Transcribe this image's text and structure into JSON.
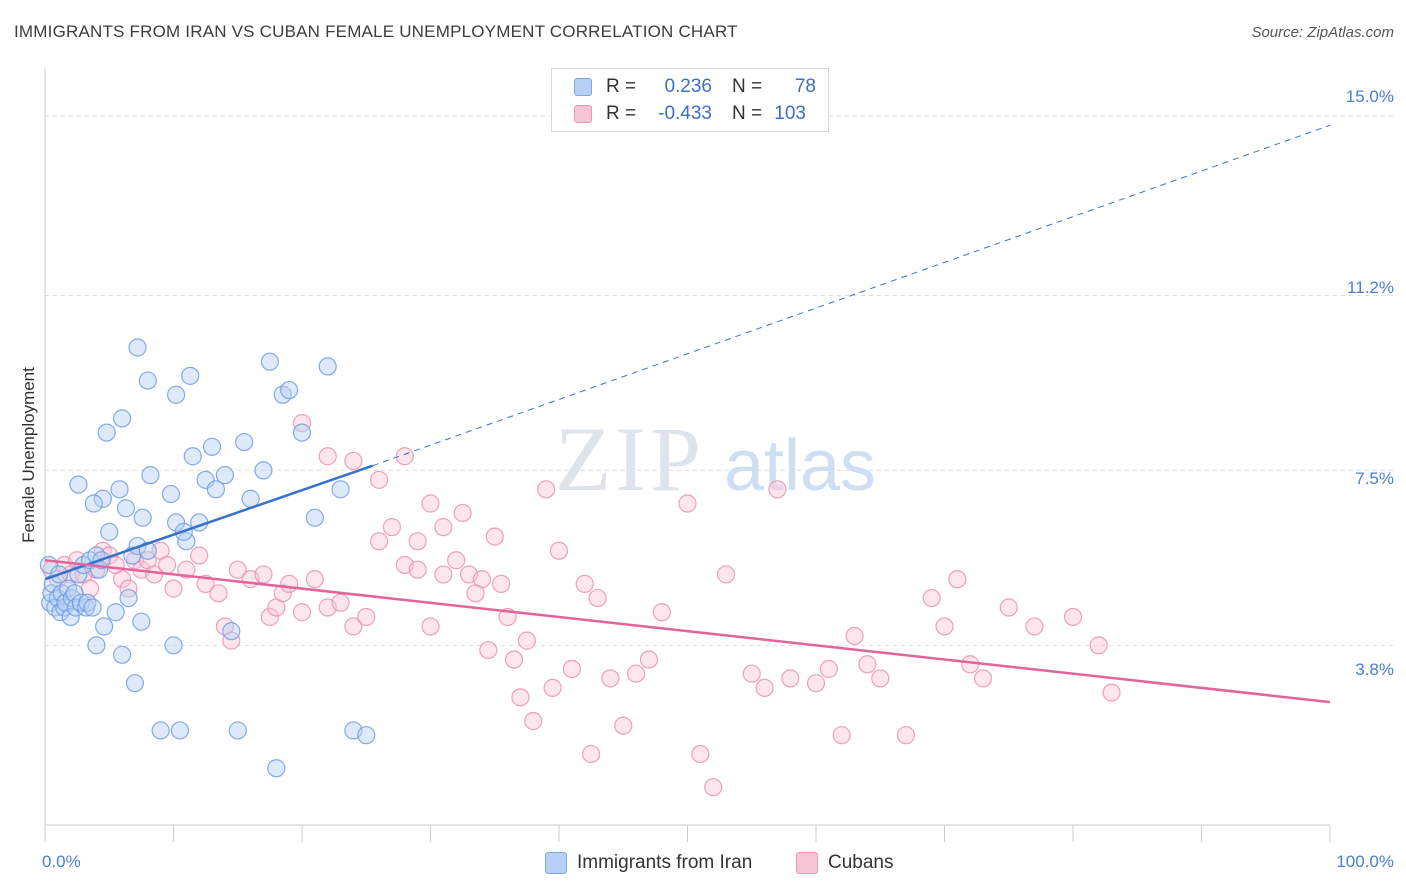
{
  "header": {
    "title": "IMMIGRANTS FROM IRAN VS CUBAN FEMALE UNEMPLOYMENT CORRELATION CHART",
    "source": "Source: ZipAtlas.com"
  },
  "watermark": {
    "zip": "ZIP",
    "atlas": "atlas"
  },
  "legend": {
    "blue": {
      "r_label": "R =",
      "r_value": "0.236",
      "n_label": "N =",
      "n_value": "78"
    },
    "pink": {
      "r_label": "R =",
      "r_value": "-0.433",
      "n_label": "N =",
      "n_value": "103"
    }
  },
  "colors": {
    "blue_fill": "#b6d0f5",
    "blue_stroke": "#6f9ee0",
    "blue_line": "#3672c9",
    "pink_fill": "#f8c5d6",
    "pink_stroke": "#e992b1",
    "pink_line": "#e2649a",
    "grid": "#dddddd",
    "tick_text": "#4a7fd0"
  },
  "chart_data": {
    "type": "scatter",
    "title": "IMMIGRANTS FROM IRAN VS CUBAN FEMALE UNEMPLOYMENT CORRELATION CHART",
    "xlabel": "",
    "ylabel": "Female Unemployment",
    "xlim": [
      0,
      100
    ],
    "ylim": [
      0,
      15.8
    ],
    "x_tick_labels": [
      "0.0%",
      "100.0%"
    ],
    "y_ticks": [
      {
        "value": 3.8,
        "label": "3.8%"
      },
      {
        "value": 7.5,
        "label": "7.5%"
      },
      {
        "value": 11.2,
        "label": "11.2%"
      },
      {
        "value": 15.0,
        "label": "15.0%"
      }
    ],
    "legend_position": "top-center",
    "series": [
      {
        "name": "Immigrants from Iran",
        "color": "blue",
        "r": 0.236,
        "n": 78,
        "trend": {
          "x0": 0,
          "y0": 5.2,
          "x_solid_end": 25.5,
          "y_solid_end": 7.6,
          "x1": 100,
          "y1": 14.8
        },
        "points": [
          [
            0.3,
            5.5
          ],
          [
            0.4,
            4.7
          ],
          [
            0.5,
            4.9
          ],
          [
            0.6,
            5.1
          ],
          [
            0.8,
            4.6
          ],
          [
            1.0,
            4.8
          ],
          [
            1.1,
            5.3
          ],
          [
            1.2,
            4.5
          ],
          [
            1.3,
            4.9
          ],
          [
            1.5,
            4.6
          ],
          [
            1.6,
            4.7
          ],
          [
            1.8,
            5.0
          ],
          [
            2.0,
            4.4
          ],
          [
            2.1,
            4.8
          ],
          [
            2.3,
            4.9
          ],
          [
            2.4,
            4.6
          ],
          [
            2.6,
            5.3
          ],
          [
            2.8,
            4.7
          ],
          [
            3.0,
            5.5
          ],
          [
            3.2,
            4.6
          ],
          [
            3.3,
            4.7
          ],
          [
            3.5,
            5.6
          ],
          [
            3.7,
            4.6
          ],
          [
            4.0,
            5.7
          ],
          [
            4.2,
            5.4
          ],
          [
            4.4,
            5.6
          ],
          [
            4.6,
            4.2
          ],
          [
            5.0,
            6.2
          ],
          [
            5.5,
            4.5
          ],
          [
            6.0,
            3.6
          ],
          [
            6.5,
            4.8
          ],
          [
            6.8,
            5.7
          ],
          [
            7.0,
            3.0
          ],
          [
            7.2,
            5.9
          ],
          [
            7.5,
            4.3
          ],
          [
            8.0,
            5.8
          ],
          [
            9.0,
            2.0
          ],
          [
            10.0,
            3.8
          ],
          [
            10.5,
            2.0
          ],
          [
            11.0,
            6.0
          ],
          [
            4.0,
            3.8
          ],
          [
            4.5,
            6.9
          ],
          [
            5.8,
            7.1
          ],
          [
            6.3,
            6.7
          ],
          [
            7.6,
            6.5
          ],
          [
            8.2,
            7.4
          ],
          [
            9.8,
            7.0
          ],
          [
            10.2,
            6.4
          ],
          [
            10.8,
            6.2
          ],
          [
            11.5,
            7.8
          ],
          [
            12.0,
            6.4
          ],
          [
            12.5,
            7.3
          ],
          [
            13.0,
            8.0
          ],
          [
            13.3,
            7.1
          ],
          [
            14.0,
            7.4
          ],
          [
            14.5,
            4.1
          ],
          [
            15.0,
            2.0
          ],
          [
            15.5,
            8.1
          ],
          [
            16.0,
            6.9
          ],
          [
            17.0,
            7.5
          ],
          [
            17.5,
            9.8
          ],
          [
            18.0,
            1.2
          ],
          [
            18.5,
            9.1
          ],
          [
            19.0,
            9.2
          ],
          [
            20.0,
            8.3
          ],
          [
            21.0,
            6.5
          ],
          [
            22.0,
            9.7
          ],
          [
            23.0,
            7.1
          ],
          [
            24.0,
            2.0
          ],
          [
            25.0,
            1.9
          ],
          [
            4.8,
            8.3
          ],
          [
            6.0,
            8.6
          ],
          [
            7.2,
            10.1
          ],
          [
            8.0,
            9.4
          ],
          [
            10.2,
            9.1
          ],
          [
            11.3,
            9.5
          ],
          [
            2.6,
            7.2
          ],
          [
            3.8,
            6.8
          ]
        ]
      },
      {
        "name": "Cubans",
        "color": "pink",
        "r": -0.433,
        "n": 103,
        "trend": {
          "x0": 0,
          "y0": 5.6,
          "x1": 100,
          "y1": 2.6
        },
        "points": [
          [
            0.5,
            5.4
          ],
          [
            1.0,
            5.2
          ],
          [
            1.5,
            5.5
          ],
          [
            2.0,
            5.3
          ],
          [
            2.5,
            5.6
          ],
          [
            3.0,
            5.3
          ],
          [
            3.5,
            5.0
          ],
          [
            4.0,
            5.4
          ],
          [
            4.5,
            5.8
          ],
          [
            5.0,
            5.7
          ],
          [
            5.5,
            5.5
          ],
          [
            6.0,
            5.2
          ],
          [
            6.5,
            5.0
          ],
          [
            7.0,
            5.6
          ],
          [
            7.5,
            5.4
          ],
          [
            8.0,
            5.6
          ],
          [
            8.5,
            5.3
          ],
          [
            9.0,
            5.8
          ],
          [
            9.5,
            5.5
          ],
          [
            10.0,
            5.0
          ],
          [
            11.0,
            5.4
          ],
          [
            12.0,
            5.7
          ],
          [
            12.5,
            5.1
          ],
          [
            13.5,
            4.9
          ],
          [
            14.0,
            4.2
          ],
          [
            14.5,
            3.9
          ],
          [
            15.0,
            5.4
          ],
          [
            16.0,
            5.2
          ],
          [
            17.0,
            5.3
          ],
          [
            17.5,
            4.4
          ],
          [
            18.0,
            4.6
          ],
          [
            18.5,
            4.9
          ],
          [
            19.0,
            5.1
          ],
          [
            20.0,
            4.5
          ],
          [
            21.0,
            5.2
          ],
          [
            22.0,
            4.6
          ],
          [
            23.0,
            4.7
          ],
          [
            24.0,
            4.2
          ],
          [
            25.0,
            4.4
          ],
          [
            26.0,
            6.0
          ],
          [
            27.0,
            6.3
          ],
          [
            28.0,
            5.5
          ],
          [
            29.0,
            5.4
          ],
          [
            30.0,
            4.2
          ],
          [
            31.0,
            5.3
          ],
          [
            32.0,
            5.6
          ],
          [
            33.0,
            5.3
          ],
          [
            34.0,
            5.2
          ],
          [
            35.0,
            6.1
          ],
          [
            36.0,
            4.4
          ],
          [
            37.0,
            2.7
          ],
          [
            38.0,
            2.2
          ],
          [
            39.0,
            7.1
          ],
          [
            40.0,
            5.8
          ],
          [
            41.0,
            3.3
          ],
          [
            42.0,
            5.1
          ],
          [
            43.0,
            4.8
          ],
          [
            44.0,
            3.1
          ],
          [
            45.0,
            2.1
          ],
          [
            46.0,
            3.2
          ],
          [
            47.0,
            3.5
          ],
          [
            48.0,
            4.5
          ],
          [
            50.0,
            6.8
          ],
          [
            51.0,
            1.5
          ],
          [
            52.0,
            0.8
          ],
          [
            53.0,
            5.3
          ],
          [
            55.0,
            3.2
          ],
          [
            56.0,
            2.9
          ],
          [
            57.0,
            7.1
          ],
          [
            58.0,
            3.1
          ],
          [
            60.0,
            3.0
          ],
          [
            61.0,
            3.3
          ],
          [
            62.0,
            1.9
          ],
          [
            63.0,
            4.0
          ],
          [
            64.0,
            3.4
          ],
          [
            65.0,
            3.1
          ],
          [
            67.0,
            1.9
          ],
          [
            69.0,
            4.8
          ],
          [
            70.0,
            4.2
          ],
          [
            71.0,
            5.2
          ],
          [
            72.0,
            3.4
          ],
          [
            73.0,
            3.1
          ],
          [
            75.0,
            4.6
          ],
          [
            77.0,
            4.2
          ],
          [
            80.0,
            4.4
          ],
          [
            82.0,
            3.8
          ],
          [
            83.0,
            2.8
          ],
          [
            20.0,
            8.5
          ],
          [
            22.0,
            7.8
          ],
          [
            24.0,
            7.7
          ],
          [
            26.0,
            7.3
          ],
          [
            28.0,
            7.8
          ],
          [
            29.0,
            6.0
          ],
          [
            30.0,
            6.8
          ],
          [
            31.0,
            6.3
          ],
          [
            32.5,
            6.6
          ],
          [
            33.5,
            4.9
          ],
          [
            34.5,
            3.7
          ],
          [
            35.5,
            5.1
          ],
          [
            36.5,
            3.5
          ],
          [
            37.5,
            3.9
          ],
          [
            39.5,
            2.9
          ],
          [
            42.5,
            1.5
          ]
        ]
      }
    ]
  },
  "bottom_legend": {
    "blue_label": "Immigrants from Iran",
    "pink_label": "Cubans"
  }
}
